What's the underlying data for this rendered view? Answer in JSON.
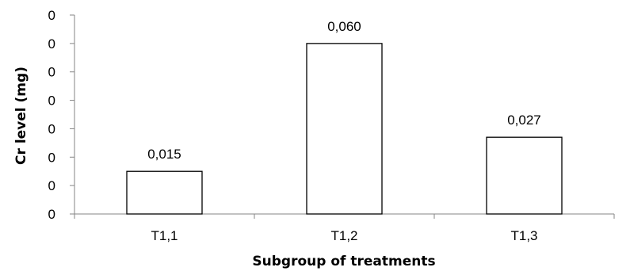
{
  "chart_data": {
    "type": "bar",
    "categories": [
      "T1,1",
      "T1,2",
      "T1,3"
    ],
    "values": [
      0.015,
      0.06,
      0.027
    ],
    "data_labels": [
      "0,015",
      "0,060",
      "0,027"
    ],
    "y_tick_labels": [
      "0",
      "0",
      "0",
      "0",
      "0",
      "0",
      "0",
      "0"
    ],
    "xlabel": "Subgroup of treatments",
    "ylabel": "Cr level (mg)",
    "ylim": [
      0,
      0.07
    ],
    "y_tick_step": 0.01,
    "grid": false,
    "legend": "none",
    "bar_fill": "#ffffff",
    "bar_stroke": "#000000",
    "axis_color": "#868686"
  }
}
